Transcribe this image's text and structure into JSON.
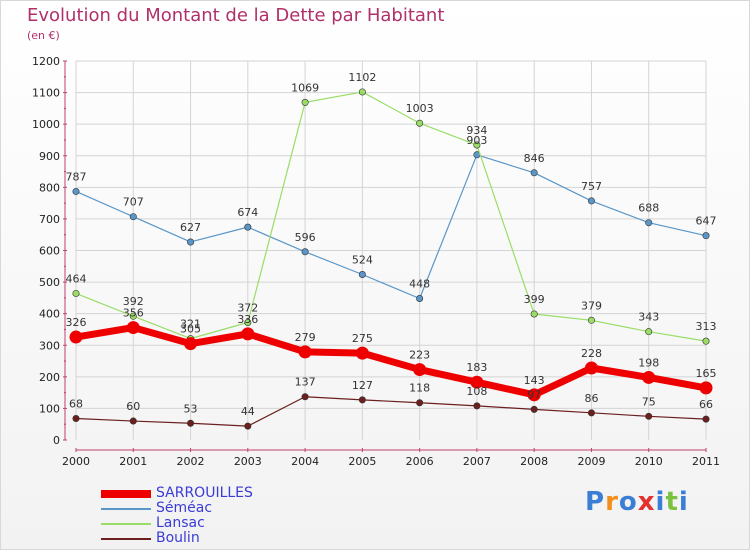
{
  "header": {
    "title": "Evolution du Montant de la Dette par Habitant",
    "subtitle": "(en €)"
  },
  "logo": {
    "text": "Proxiti",
    "colors": [
      "#3a7fd5",
      "#f28e1c",
      "#3a7fd5",
      "#e3312c",
      "#3a7fd5",
      "#7cc242",
      "#3a7fd5"
    ]
  },
  "chart_data": {
    "type": "line",
    "title": "Evolution du Montant de la Dette par Habitant",
    "ylabel": "(en €)",
    "xlabel": "",
    "categories": [
      "2000",
      "2001",
      "2002",
      "2003",
      "2004",
      "2005",
      "2006",
      "2007",
      "2008",
      "2009",
      "2010",
      "2011"
    ],
    "ylim": [
      0,
      1200
    ],
    "yticks": [
      0,
      100,
      200,
      300,
      400,
      500,
      600,
      700,
      800,
      900,
      1000,
      1100,
      1200
    ],
    "grid": true,
    "legend_position": "bottom-left",
    "series": [
      {
        "name": "SARROUILLES",
        "color": "#ee0000",
        "emphasis": true,
        "values": [
          326,
          356,
          305,
          336,
          279,
          275,
          223,
          183,
          143,
          228,
          198,
          165
        ]
      },
      {
        "name": "Séméac",
        "color": "#5a96c8",
        "emphasis": false,
        "values": [
          787,
          707,
          627,
          674,
          596,
          524,
          448,
          903,
          846,
          757,
          688,
          647
        ]
      },
      {
        "name": "Lansac",
        "color": "#99dd66",
        "emphasis": false,
        "values": [
          464,
          392,
          321,
          372,
          1069,
          1102,
          1003,
          934,
          399,
          379,
          343,
          313
        ]
      },
      {
        "name": "Boulin",
        "color": "#6b1f1f",
        "emphasis": false,
        "values": [
          68,
          60,
          53,
          44,
          137,
          127,
          118,
          108,
          97,
          86,
          75,
          66
        ]
      }
    ]
  }
}
